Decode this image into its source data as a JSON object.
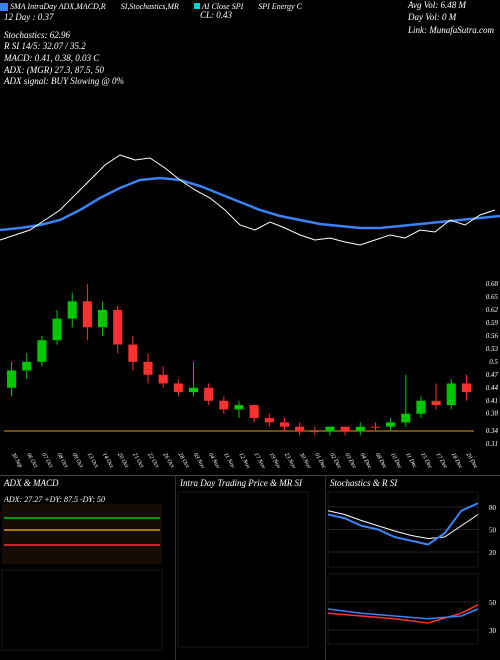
{
  "header": {
    "sma_label": "SMA IntraDay ADX,MACD,R",
    "stoch_label": "SI,Stochastics,MR",
    "close_label": "AI Close SPI",
    "energy_label": "SPI Energy C",
    "link_label": "Link: MunafaSutra.com"
  },
  "summary": {
    "line1": "12 Day : 0.37",
    "cl": "CL: 0.43",
    "avg_vol": "Avg Vol: 6.48   M",
    "day_vol": "Day Vol: 0   M"
  },
  "indicators": {
    "stochastics": "Stochastics: 62.96",
    "rsi": "R     SI 14/5: 32.07 / 35.2",
    "macd": "MACD: 0.41,  0.38,  0.03 C",
    "adx": "ADX:                       (MGR) 27.3,  87.5,  50",
    "adx_signal": "ADX  signal:                               BUY Slowing @ 0%"
  },
  "main_chart": {
    "sma_color": "#3b82f6",
    "price_color": "#ffffff",
    "bg": "#000000",
    "sma_points": [
      [
        0,
        150
      ],
      [
        20,
        148
      ],
      [
        40,
        145
      ],
      [
        60,
        140
      ],
      [
        80,
        130
      ],
      [
        100,
        118
      ],
      [
        120,
        108
      ],
      [
        140,
        100
      ],
      [
        160,
        98
      ],
      [
        180,
        100
      ],
      [
        200,
        106
      ],
      [
        220,
        114
      ],
      [
        240,
        122
      ],
      [
        260,
        130
      ],
      [
        280,
        136
      ],
      [
        300,
        140
      ],
      [
        320,
        144
      ],
      [
        340,
        146
      ],
      [
        360,
        148
      ],
      [
        380,
        148
      ],
      [
        400,
        146
      ],
      [
        420,
        144
      ],
      [
        440,
        142
      ],
      [
        460,
        140
      ],
      [
        480,
        138
      ],
      [
        500,
        136
      ]
    ],
    "price_points": [
      [
        0,
        160
      ],
      [
        15,
        155
      ],
      [
        30,
        150
      ],
      [
        45,
        140
      ],
      [
        60,
        130
      ],
      [
        75,
        115
      ],
      [
        90,
        100
      ],
      [
        105,
        85
      ],
      [
        120,
        75
      ],
      [
        135,
        80
      ],
      [
        150,
        78
      ],
      [
        165,
        88
      ],
      [
        180,
        100
      ],
      [
        195,
        110
      ],
      [
        210,
        118
      ],
      [
        225,
        130
      ],
      [
        240,
        145
      ],
      [
        255,
        150
      ],
      [
        270,
        142
      ],
      [
        285,
        148
      ],
      [
        300,
        155
      ],
      [
        315,
        160
      ],
      [
        330,
        158
      ],
      [
        345,
        162
      ],
      [
        360,
        165
      ],
      [
        375,
        160
      ],
      [
        390,
        155
      ],
      [
        405,
        158
      ],
      [
        420,
        150
      ],
      [
        435,
        152
      ],
      [
        450,
        140
      ],
      [
        465,
        145
      ],
      [
        480,
        135
      ],
      [
        495,
        130
      ]
    ]
  },
  "candle_chart": {
    "y_labels": [
      "0.68",
      "0.65",
      "0.62",
      "0.59",
      "0.56",
      "0.53",
      "0.5",
      "0.47",
      "0.44",
      "0.41",
      "0.38",
      "0.34",
      "0.31"
    ],
    "y_range": [
      0.31,
      0.68
    ],
    "support_line_y": 0.34,
    "support_color": "#d4a017",
    "x_labels": [
      "30 Sep",
      "06 Oct",
      "07 Oct",
      "08 Oct",
      "09 Oct",
      "13 Oct",
      "14 Oct",
      "20 Oct",
      "21 Oct",
      "22 Oct",
      "26 Oct",
      "28 Oct",
      "03 Nov",
      "04 Nov",
      "11 Nov",
      "12 Nov",
      "17 Nov",
      "19 Nov",
      "23 Nov",
      "30 Nov",
      "01 Dec",
      "02 Dec",
      "03 Dec",
      "04 Dec",
      "08 Dec",
      "10 Dec",
      "11 Dec",
      "15 Dec",
      "17 Dec",
      "18 Dec",
      "20 Dec"
    ],
    "candles": [
      {
        "x": 0,
        "o": 0.44,
        "h": 0.5,
        "l": 0.42,
        "c": 0.48,
        "up": true
      },
      {
        "x": 1,
        "o": 0.48,
        "h": 0.52,
        "l": 0.46,
        "c": 0.5,
        "up": true
      },
      {
        "x": 2,
        "o": 0.5,
        "h": 0.56,
        "l": 0.49,
        "c": 0.55,
        "up": true
      },
      {
        "x": 3,
        "o": 0.55,
        "h": 0.62,
        "l": 0.54,
        "c": 0.6,
        "up": true
      },
      {
        "x": 4,
        "o": 0.6,
        "h": 0.66,
        "l": 0.58,
        "c": 0.64,
        "up": true
      },
      {
        "x": 5,
        "o": 0.64,
        "h": 0.68,
        "l": 0.55,
        "c": 0.58,
        "up": false
      },
      {
        "x": 6,
        "o": 0.58,
        "h": 0.64,
        "l": 0.56,
        "c": 0.62,
        "up": true
      },
      {
        "x": 7,
        "o": 0.62,
        "h": 0.63,
        "l": 0.52,
        "c": 0.54,
        "up": false
      },
      {
        "x": 8,
        "o": 0.54,
        "h": 0.56,
        "l": 0.48,
        "c": 0.5,
        "up": false
      },
      {
        "x": 9,
        "o": 0.5,
        "h": 0.52,
        "l": 0.45,
        "c": 0.47,
        "up": false
      },
      {
        "x": 10,
        "o": 0.47,
        "h": 0.49,
        "l": 0.44,
        "c": 0.45,
        "up": false
      },
      {
        "x": 11,
        "o": 0.45,
        "h": 0.46,
        "l": 0.42,
        "c": 0.43,
        "up": false
      },
      {
        "x": 12,
        "o": 0.43,
        "h": 0.5,
        "l": 0.42,
        "c": 0.44,
        "up": true
      },
      {
        "x": 13,
        "o": 0.44,
        "h": 0.45,
        "l": 0.4,
        "c": 0.41,
        "up": false
      },
      {
        "x": 14,
        "o": 0.41,
        "h": 0.42,
        "l": 0.38,
        "c": 0.39,
        "up": false
      },
      {
        "x": 15,
        "o": 0.39,
        "h": 0.41,
        "l": 0.37,
        "c": 0.4,
        "up": true
      },
      {
        "x": 16,
        "o": 0.4,
        "h": 0.4,
        "l": 0.36,
        "c": 0.37,
        "up": false
      },
      {
        "x": 17,
        "o": 0.37,
        "h": 0.38,
        "l": 0.35,
        "c": 0.36,
        "up": false
      },
      {
        "x": 18,
        "o": 0.36,
        "h": 0.37,
        "l": 0.34,
        "c": 0.35,
        "up": false
      },
      {
        "x": 19,
        "o": 0.35,
        "h": 0.36,
        "l": 0.33,
        "c": 0.34,
        "up": false
      },
      {
        "x": 20,
        "o": 0.34,
        "h": 0.35,
        "l": 0.33,
        "c": 0.34,
        "up": false
      },
      {
        "x": 21,
        "o": 0.34,
        "h": 0.35,
        "l": 0.33,
        "c": 0.35,
        "up": true
      },
      {
        "x": 22,
        "o": 0.35,
        "h": 0.35,
        "l": 0.33,
        "c": 0.34,
        "up": false
      },
      {
        "x": 23,
        "o": 0.34,
        "h": 0.36,
        "l": 0.33,
        "c": 0.35,
        "up": true
      },
      {
        "x": 24,
        "o": 0.35,
        "h": 0.36,
        "l": 0.34,
        "c": 0.35,
        "up": false
      },
      {
        "x": 25,
        "o": 0.35,
        "h": 0.37,
        "l": 0.34,
        "c": 0.36,
        "up": true
      },
      {
        "x": 26,
        "o": 0.36,
        "h": 0.47,
        "l": 0.35,
        "c": 0.38,
        "up": true
      },
      {
        "x": 27,
        "o": 0.38,
        "h": 0.42,
        "l": 0.37,
        "c": 0.41,
        "up": true
      },
      {
        "x": 28,
        "o": 0.41,
        "h": 0.45,
        "l": 0.39,
        "c": 0.4,
        "up": false
      },
      {
        "x": 29,
        "o": 0.4,
        "h": 0.46,
        "l": 0.39,
        "c": 0.45,
        "up": true
      },
      {
        "x": 30,
        "o": 0.45,
        "h": 0.47,
        "l": 0.41,
        "c": 0.43,
        "up": false
      }
    ],
    "up_color": "#00c800",
    "down_color": "#ff3030"
  },
  "bottom": {
    "panel1_label": "ADX  & MACD",
    "panel2_label": "Intra  Day Trading Price   & MR         SI",
    "panel3_label": "Stochastics & R          SI",
    "adx_text": "ADX: 27.27 +DY: 87.5 -DY: 50",
    "adx_colors": {
      "adx": "#d4a017",
      "pdi": "#00c800",
      "ndi": "#ff3030",
      "bg": "#2a1a0a"
    },
    "stoch_panel": {
      "line_color": "#3b82f6",
      "grid_color": "#444",
      "labels": [
        "80",
        "50",
        "20"
      ],
      "k_points": [
        [
          0,
          70
        ],
        [
          20,
          65
        ],
        [
          40,
          55
        ],
        [
          60,
          50
        ],
        [
          80,
          40
        ],
        [
          100,
          35
        ],
        [
          120,
          30
        ],
        [
          140,
          45
        ],
        [
          160,
          75
        ],
        [
          180,
          85
        ]
      ],
      "d_points": [
        [
          0,
          75
        ],
        [
          20,
          70
        ],
        [
          40,
          62
        ],
        [
          60,
          55
        ],
        [
          80,
          48
        ],
        [
          100,
          42
        ],
        [
          120,
          38
        ],
        [
          140,
          40
        ],
        [
          160,
          55
        ],
        [
          180,
          70
        ]
      ]
    },
    "rsi_panel": {
      "line_color": "#ff3030",
      "line2_color": "#3b82f6",
      "labels": [
        "50",
        "30"
      ],
      "r1": [
        [
          0,
          42
        ],
        [
          40,
          40
        ],
        [
          80,
          38
        ],
        [
          120,
          35
        ],
        [
          160,
          42
        ],
        [
          180,
          48
        ]
      ],
      "r2": [
        [
          0,
          45
        ],
        [
          40,
          42
        ],
        [
          80,
          40
        ],
        [
          120,
          38
        ],
        [
          160,
          40
        ],
        [
          180,
          45
        ]
      ]
    }
  }
}
